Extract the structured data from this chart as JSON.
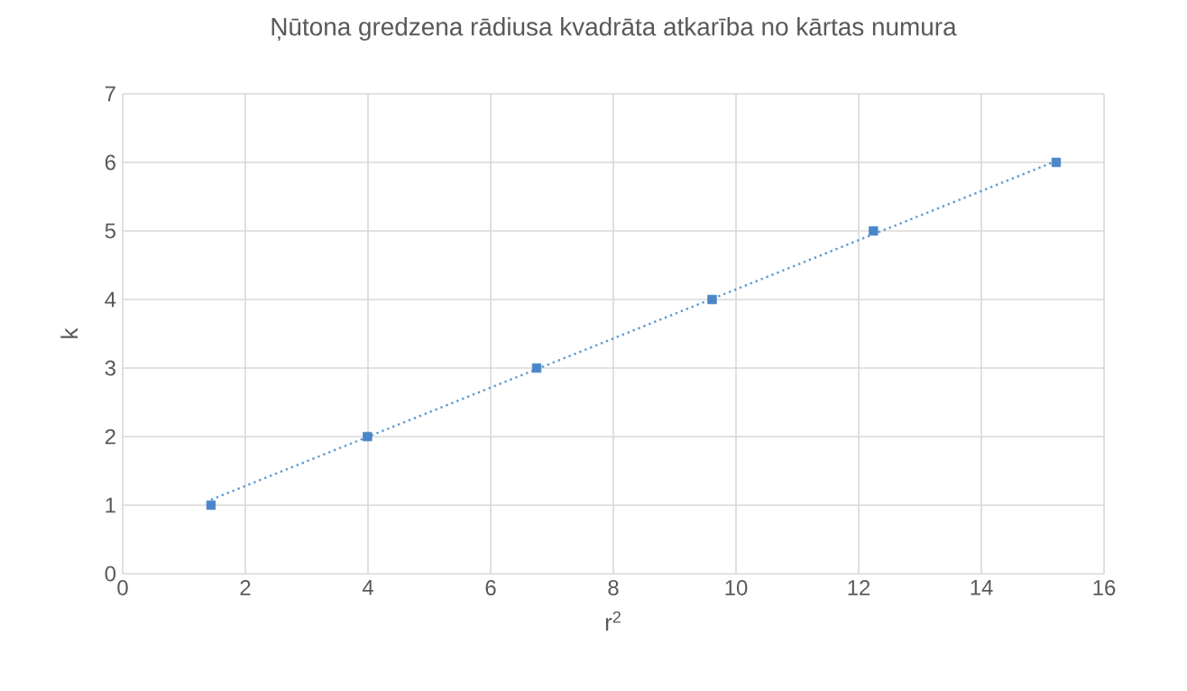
{
  "chart_data": {
    "type": "scatter",
    "title": "Ņūtona gredzena rādiusa kvadrāta atkarība no kārtas numura",
    "xlabel": "r$^{2}$",
    "ylabel": "k",
    "xlim": [
      0,
      16
    ],
    "xticks": [
      0,
      2,
      4,
      6,
      8,
      10,
      12,
      14,
      16
    ],
    "ylim": [
      0,
      7
    ],
    "yticks": [
      0,
      1,
      2,
      3,
      4,
      5,
      6,
      7
    ],
    "grid": true,
    "marker": "square",
    "series": [
      {
        "color": "#4a86c8",
        "x": [
          1.44,
          3.99,
          6.75,
          9.61,
          12.24,
          15.22
        ],
        "values": [
          1,
          2,
          3,
          4,
          5,
          6
        ]
      },
      {
        "type": "line",
        "color": "#5b9bd5",
        "line_style": "dotted",
        "marker": "none",
        "x": [
          1.44,
          15.22
        ],
        "values": [
          1.08,
          6.02
        ]
      }
    ]
  }
}
